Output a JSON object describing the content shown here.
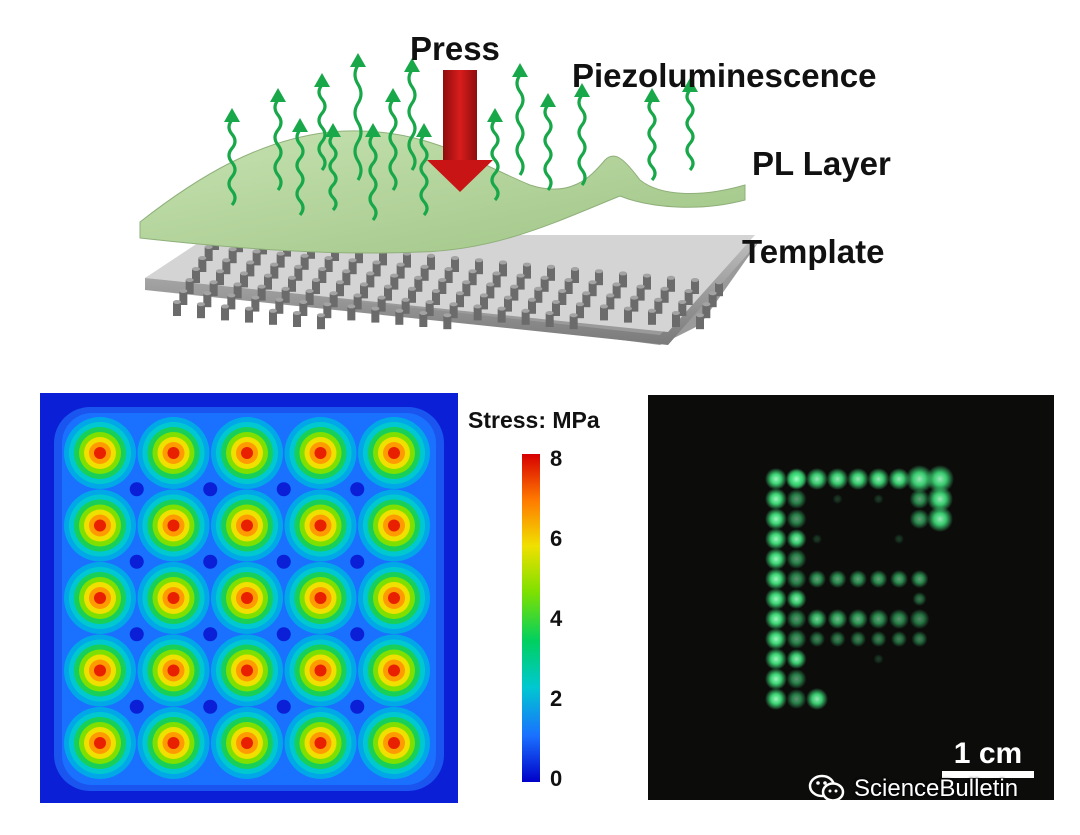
{
  "schematic": {
    "press_label": "Press",
    "piezo_label": "Piezoluminescence",
    "pl_layer_label": "PL Layer",
    "template_label": "Template",
    "arrow_color": "#c81414",
    "emission_color": "#18a84a",
    "layer_color": "#b7d7a0",
    "template_color": "#8c8c8c"
  },
  "stress_map": {
    "grid_rows": 5,
    "grid_cols": 5,
    "background_color": "#0a1fd6"
  },
  "colorbar": {
    "title": "Stress: MPa",
    "ticks": [
      "8",
      "6",
      "4",
      "2",
      "0"
    ],
    "min": 0,
    "max": 8,
    "colors": [
      "#d60000",
      "#ff7a00",
      "#f0e000",
      "#7fe000",
      "#00d060",
      "#00c8d0",
      "#1a70ff",
      "#0000c8"
    ]
  },
  "photo": {
    "letter": "F",
    "glow_color": "#3ee07a",
    "scale_bar_label": "1 cm"
  },
  "watermark": {
    "text": "ScienceBulletin",
    "icon": "wechat-icon"
  }
}
